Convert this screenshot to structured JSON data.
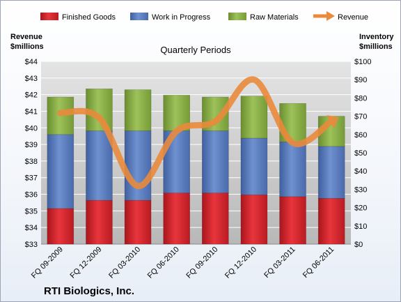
{
  "chart_data": {
    "type": "bar",
    "title": "Quarterly Periods",
    "company": "RTI Biologics, Inc.",
    "categories": [
      "FQ 09-2009",
      "FQ 12-2009",
      "FQ 03-2010",
      "FQ 06-2010",
      "FQ 09-2010",
      "FQ 12-2010",
      "FQ 03-2011",
      "FQ 06-2011"
    ],
    "stacked": true,
    "series": [
      {
        "name": "Finished Goods",
        "axis": "right",
        "color": "#d42028",
        "values": [
          19.5,
          24,
          24,
          28,
          28,
          27,
          26,
          25
        ]
      },
      {
        "name": "Work in Progress",
        "axis": "right",
        "color": "#5b7ec1",
        "values": [
          40.5,
          38,
          38,
          34,
          34,
          31,
          30,
          28.5
        ]
      },
      {
        "name": "Raw Materials",
        "axis": "right",
        "color": "#8ab148",
        "values": [
          20.5,
          23,
          22.5,
          19.5,
          18.5,
          23,
          21,
          16.5
        ]
      }
    ],
    "line_series": {
      "name": "Revenue",
      "axis": "left",
      "color": "#e98a3c",
      "values": [
        40.9,
        40.6,
        36.5,
        39.8,
        40.4,
        42.9,
        39.1,
        40.4
      ]
    },
    "y_left": {
      "label": "Revenue\n$millions",
      "min": 33,
      "max": 44,
      "step": 1,
      "prefix": "$"
    },
    "y_right": {
      "label": "Inventory\n$millions",
      "min": 0,
      "max": 100,
      "step": 10,
      "prefix": "$"
    },
    "legend": [
      "Finished Goods",
      "Work in Progress",
      "Raw Materials",
      "Revenue"
    ],
    "legend_position": "top",
    "grid": true
  }
}
